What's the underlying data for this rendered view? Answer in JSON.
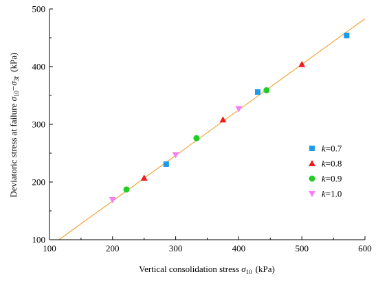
{
  "chart_data": {
    "type": "scatter",
    "title": "",
    "xlabel": "Vertical consolidation stress σ10 (kPa)",
    "ylabel": "Deviatoric stress at failure σ10−σ3f (kPa)",
    "xlim": [
      100,
      600
    ],
    "ylim": [
      100,
      500
    ],
    "x_ticks": [
      100,
      200,
      300,
      400,
      500,
      600
    ],
    "y_ticks": [
      100,
      200,
      300,
      400,
      500
    ],
    "grid": false,
    "legend_position": "right",
    "series": [
      {
        "name": "k=0.7",
        "marker": "square",
        "color": "#1e9be8",
        "points": [
          [
            285,
            231
          ],
          [
            430,
            356
          ],
          [
            571,
            454
          ]
        ]
      },
      {
        "name": "k=0.8",
        "marker": "triangle-up",
        "color": "#ee1c1c",
        "points": [
          [
            250,
            207
          ],
          [
            375,
            308
          ],
          [
            500,
            404
          ]
        ]
      },
      {
        "name": "k=0.9",
        "marker": "circle",
        "color": "#22cc22",
        "points": [
          [
            222,
            187
          ],
          [
            333,
            276
          ],
          [
            444,
            359
          ]
        ]
      },
      {
        "name": "k=1.0",
        "marker": "triangle-down",
        "color": "#f57ef5",
        "points": [
          [
            200,
            169
          ],
          [
            300,
            247
          ],
          [
            400,
            327
          ]
        ]
      }
    ],
    "fit_line": {
      "color": "#f4a43a",
      "points": [
        [
          115,
          100
        ],
        [
          600,
          483
        ]
      ]
    }
  },
  "labels": {
    "x_main": "Vertical consolidation stress ",
    "x_sym": "σ",
    "x_sub": "10",
    "x_unit": "(kPa)",
    "y_main": "Deviatoric stress at failure ",
    "y_sym1": "σ",
    "y_sub1": "10",
    "y_dash": "−",
    "y_sym2": "σ",
    "y_sub2": "3f",
    "y_unit": "(kPa)",
    "legend_k": "k",
    "legend_eq": "="
  }
}
